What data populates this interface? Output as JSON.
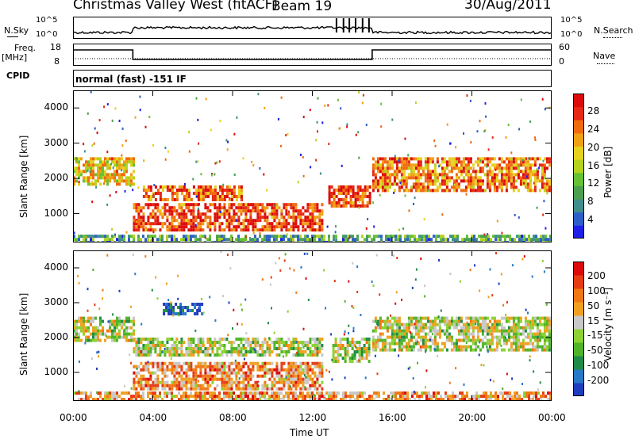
{
  "header": {
    "station": "Christmas Valley West (fitACF)",
    "beam": "Beam 19",
    "date": "30/Aug/2011"
  },
  "summary": {
    "nsky_label": "N.Sky",
    "nsky_ticks": [
      "10^5",
      "10^0"
    ],
    "nsearch_label": "N.Search",
    "nsearch_ticks": [
      "10^5",
      "10^0"
    ],
    "freq_label": "Freq.",
    "freq_unit": "[MHz]",
    "freq_ticks": [
      "18",
      "8"
    ],
    "nave_label": "Nave",
    "nave_ticks": [
      "60",
      "0"
    ],
    "cpid_label": "CPID",
    "cpid_value": "normal (fast) -151 IF"
  },
  "chart_data": [
    {
      "type": "heatmap",
      "name": "power-panel",
      "ylabel": "Slant Range [km]",
      "yticks": [
        "4000",
        "3000",
        "2000",
        "1000"
      ],
      "ylim": [
        180,
        4500
      ],
      "colorbar_label": "Power [dB]",
      "colorbar_ticks": [
        "28",
        "24",
        "20",
        "16",
        "12",
        "8",
        "4"
      ],
      "colors": [
        "#1e1ee6",
        "#2d5fc8",
        "#3f8f8c",
        "#4ba050",
        "#66c232",
        "#b4d21e",
        "#e6d21e",
        "#f0a014",
        "#f06a0f",
        "#e62814",
        "#dc0a0a"
      ],
      "bands": [
        {
          "x0": 0.0,
          "x1": 3.0,
          "y0": 1800,
          "y1": 2600,
          "level": 0.6
        },
        {
          "x0": 3.5,
          "x1": 8.5,
          "y0": 1350,
          "y1": 1800,
          "level": 0.8
        },
        {
          "x0": 3.0,
          "x1": 12.5,
          "y0": 550,
          "y1": 1300,
          "level": 0.85
        },
        {
          "x0": 12.8,
          "x1": 14.9,
          "y0": 1200,
          "y1": 1800,
          "level": 0.85
        },
        {
          "x0": 15.0,
          "x1": 24.0,
          "y0": 1700,
          "y1": 2600,
          "level": 0.75
        },
        {
          "x0": 0.0,
          "x1": 24.0,
          "y0": 200,
          "y1": 400,
          "level": 0.3
        }
      ]
    },
    {
      "type": "heatmap",
      "name": "velocity-panel",
      "ylabel": "Slant Range [km]",
      "yticks": [
        "4000",
        "3000",
        "2000",
        "1000"
      ],
      "ylim": [
        180,
        4500
      ],
      "colorbar_label": "Velocity [m s⁻¹]",
      "colorbar_ticks": [
        "200",
        "100",
        "50",
        "15",
        "-15",
        "-50",
        "-100",
        "-200"
      ],
      "colors": [
        "#1e3cbe",
        "#2878c8",
        "#1e8c46",
        "#50b428",
        "#8cd232",
        "#c8c8c8",
        "#f0a020",
        "#f07814",
        "#e63c14",
        "#dc0a0a"
      ],
      "bands": [
        {
          "x0": 0.0,
          "x1": 3.0,
          "y0": 1900,
          "y1": 2600,
          "level": 0.5
        },
        {
          "x0": 3.0,
          "x1": 12.5,
          "y0": 1500,
          "y1": 2000,
          "level": 0.5
        },
        {
          "x0": 3.0,
          "x1": 12.5,
          "y0": 500,
          "y1": 1300,
          "level": 0.7
        },
        {
          "x0": 4.5,
          "x1": 6.5,
          "y0": 2700,
          "y1": 3000,
          "level": 0.05
        },
        {
          "x0": 13.0,
          "x1": 14.9,
          "y0": 1300,
          "y1": 2000,
          "level": 0.5
        },
        {
          "x0": 15.0,
          "x1": 24.0,
          "y0": 1600,
          "y1": 2600,
          "level": 0.5
        },
        {
          "x0": 0.0,
          "x1": 24.0,
          "y0": 200,
          "y1": 450,
          "level": 0.7
        }
      ]
    }
  ],
  "xaxis": {
    "label": "Time UT",
    "ticks": [
      "00:00",
      "04:00",
      "08:00",
      "12:00",
      "16:00",
      "20:00",
      "00:00"
    ],
    "xlim": [
      0,
      24
    ]
  }
}
